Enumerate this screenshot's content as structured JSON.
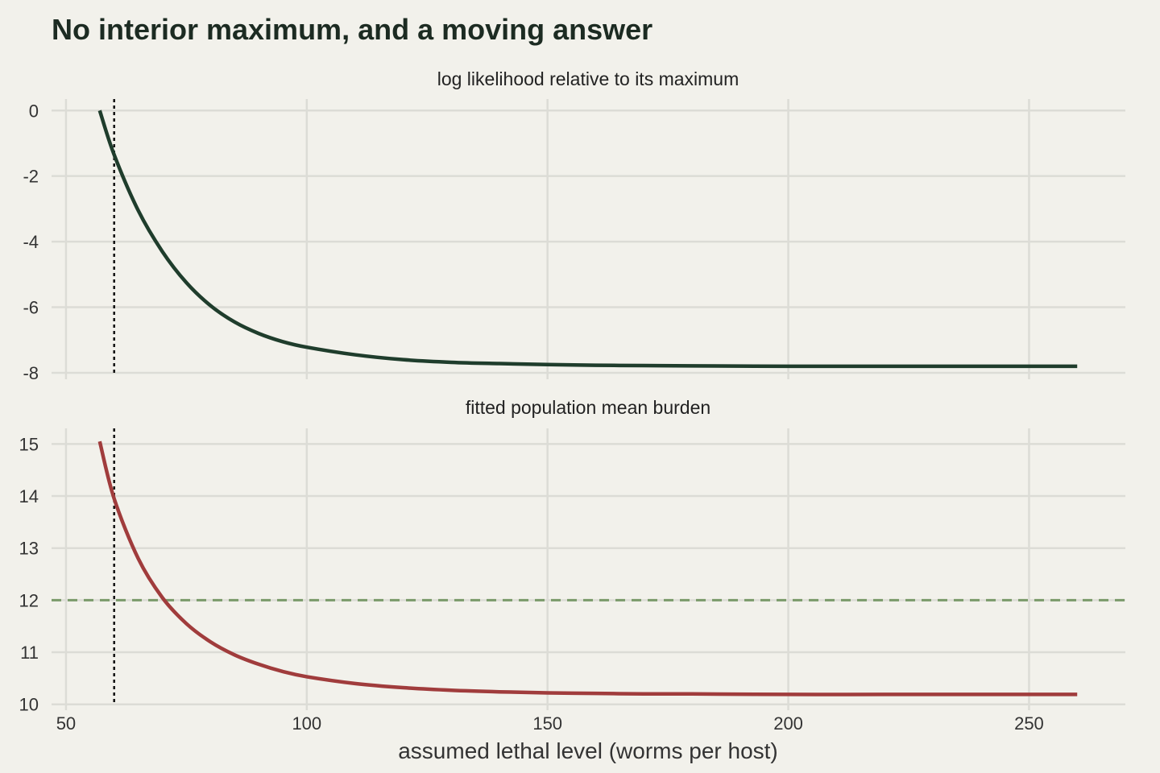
{
  "title": "No interior maximum, and a moving answer",
  "xlabel": "assumed lethal level (worms per host)",
  "x_ticks": [
    50,
    100,
    150,
    200,
    250
  ],
  "xlim": [
    47,
    270
  ],
  "colors": {
    "background": "#f2f1eb",
    "loglik_line": "#1f3d2c",
    "burden_line": "#a03c3c",
    "reference_dashed": "#7a9a6a",
    "vertical_dotted": "#111111",
    "grid": "#dcdcd6"
  },
  "chart_data": [
    {
      "type": "line",
      "panel_title": "log likelihood relative to its maximum",
      "ylim": [
        -8.05,
        0.35
      ],
      "y_ticks": [
        0,
        -2,
        -4,
        -6,
        -8
      ],
      "grid": true,
      "vertical_reference_x": 60,
      "x": [
        57,
        60,
        65,
        70,
        75,
        80,
        85,
        90,
        95,
        100,
        110,
        120,
        130,
        140,
        150,
        160,
        170,
        180,
        200,
        220,
        240,
        260
      ],
      "y": [
        0,
        -1.35,
        -3.05,
        -4.3,
        -5.25,
        -5.95,
        -6.45,
        -6.8,
        -7.05,
        -7.22,
        -7.45,
        -7.6,
        -7.68,
        -7.72,
        -7.75,
        -7.77,
        -7.78,
        -7.79,
        -7.8,
        -7.8,
        -7.8,
        -7.8
      ]
    },
    {
      "type": "line",
      "panel_title": "fitted population mean burden",
      "ylim": [
        9.98,
        15.3
      ],
      "y_ticks": [
        15,
        14,
        13,
        12,
        11,
        10
      ],
      "grid": true,
      "vertical_reference_x": 60,
      "horizontal_reference_y": 12,
      "x": [
        57,
        60,
        65,
        70,
        75,
        80,
        85,
        90,
        95,
        100,
        110,
        120,
        130,
        140,
        150,
        160,
        170,
        180,
        200,
        220,
        240,
        260
      ],
      "y": [
        15.05,
        13.95,
        12.8,
        12.05,
        11.55,
        11.2,
        10.95,
        10.77,
        10.63,
        10.53,
        10.4,
        10.32,
        10.27,
        10.24,
        10.22,
        10.21,
        10.2,
        10.2,
        10.19,
        10.19,
        10.19,
        10.19
      ]
    }
  ]
}
